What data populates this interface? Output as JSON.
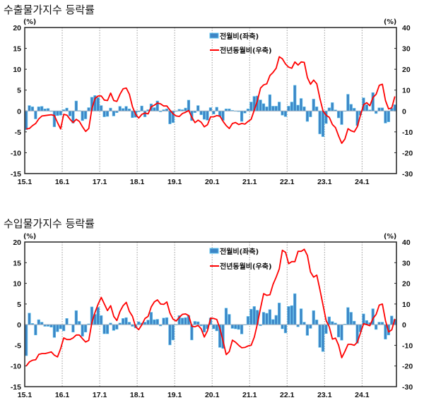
{
  "colors": {
    "bar": "#3d86c6",
    "bar_edge": "#5fc3ee",
    "line": "#ff0000",
    "grid": "#999999"
  },
  "chart_data": [
    {
      "type": "bar+line",
      "title": "수출물가지수 등락률",
      "left_unit": "(%)",
      "right_unit": "(%)",
      "ylim_left": [
        -15,
        20
      ],
      "ylim_right": [
        -30,
        40
      ],
      "left_ticks": [
        "20",
        "15",
        "10",
        "5",
        "0",
        "-5",
        "-10",
        "-15"
      ],
      "right_ticks": [
        "40",
        "30",
        "20",
        "10",
        "0",
        "-10",
        "-20",
        "-30"
      ],
      "x_tick_labels": [
        "15.1",
        "16.1",
        "17.1",
        "18.1",
        "19.1",
        "20.1",
        "21.1",
        "22.1",
        "23.1",
        "24.1"
      ],
      "grid": "vertical dotted at each year",
      "legend_position": "top-center",
      "series": [
        {
          "name": "전월비(좌축)",
          "type": "bar",
          "axis": "left",
          "values": [
            -4.5,
            1.3,
            1.0,
            -1.9,
            1.0,
            1.1,
            0.5,
            0.6,
            -0.1,
            -3.8,
            -1.1,
            -1.0,
            0.3,
            0.7,
            -1.2,
            -2.9,
            2.4,
            0.1,
            -2.3,
            -1.9,
            0.8,
            3.3,
            3.7,
            3.2,
            1.3,
            -1.4,
            -1.3,
            0.7,
            -1.2,
            -0.4,
            1.1,
            0.6,
            1.1,
            0.5,
            -1.6,
            -1.5,
            -0.2,
            1.2,
            -1.4,
            0.3,
            1.7,
            0.8,
            2.4,
            -0.2,
            0.3,
            0.5,
            -3.1,
            -2.8,
            -0.1,
            0.4,
            0.3,
            0.7,
            2.6,
            -2.3,
            -0.4,
            1.3,
            -0.9,
            -2.0,
            -2.2,
            0.8,
            -0.75,
            0.9,
            -1.25,
            -2.25,
            0.5,
            0.5,
            0.15,
            0,
            -0.15,
            -2.5,
            -0.5,
            0.5,
            2.15,
            3.5,
            3.6,
            2.65,
            1.75,
            1.0,
            3.9,
            1.15,
            1.15,
            2.15,
            -1.0,
            -1.35,
            1.15,
            2.15,
            6.15,
            1.4,
            3.0,
            1.0,
            -2.5,
            -1.4,
            2.85,
            1.0,
            -5.5,
            -6.15,
            -3.0,
            0.75,
            2.0,
            0.25,
            -1.65,
            -3.25,
            0,
            4.0,
            1.6,
            0.65,
            -3.5,
            -1.0,
            3.15,
            1.5,
            0.25,
            4.4,
            -0.6,
            0.75,
            0.75,
            -2.9,
            -2.6,
            0.65,
            1.5
          ]
        },
        {
          "name": "전년동월비(우축)",
          "type": "line",
          "axis": "right",
          "values": [
            -8.6,
            -8.4,
            -7,
            -6,
            -3.8,
            -2.4,
            -2.2,
            -2,
            -1.8,
            -2.2,
            -5.6,
            -8.6,
            -1.6,
            -2,
            -4,
            -5.6,
            -4,
            -5,
            -7.6,
            -9.8,
            -8.4,
            1,
            6,
            7.2,
            7.2,
            5.2,
            5,
            8.6,
            5,
            4.6,
            8,
            10.6,
            11,
            8,
            2,
            -1.6,
            -3.4,
            -1.6,
            -1,
            -1.4,
            2,
            2.8,
            3.8,
            3.4,
            2.4,
            2.4,
            0.4,
            -1.4,
            -2.4,
            -2.6,
            -1.2,
            -0.6,
            0.2,
            -3,
            -5.6,
            -4.4,
            -5.4,
            -7.6,
            -6.6,
            -2.8,
            -2.8,
            -2.2,
            -2.5,
            -5,
            -7,
            -8.4,
            -6,
            -5.5,
            -6.5,
            -6,
            -6.3,
            -5,
            -4,
            0.5,
            5,
            11,
            12.5,
            13,
            17,
            18.5,
            20.5,
            26,
            25,
            22.5,
            21,
            20.5,
            23.5,
            22,
            23.5,
            23.3,
            16,
            12.8,
            14.8,
            13,
            6,
            0,
            -2,
            -3,
            -6.5,
            -8,
            -12,
            -15.5,
            -13.5,
            -8.5,
            -9.5,
            -10,
            -7.5,
            -2,
            3,
            4,
            2.5,
            6.5,
            8,
            12.3,
            12.8,
            5,
            1,
            1.5,
            7
          ]
        }
      ]
    },
    {
      "type": "bar+line",
      "title": "수입물가지수 등락률",
      "left_unit": "(%)",
      "right_unit": "(%)",
      "ylim_left": [
        -15,
        20
      ],
      "ylim_right": [
        -30,
        40
      ],
      "left_ticks": [
        "20",
        "15",
        "10",
        "5",
        "0",
        "-5",
        "-10",
        "-15"
      ],
      "right_ticks": [
        "40",
        "30",
        "20",
        "10",
        "0",
        "-10",
        "-20",
        "-30"
      ],
      "x_tick_labels": [
        "15.1",
        "16.1",
        "17.1",
        "18.1",
        "19.1",
        "20.1",
        "21.1",
        "22.1",
        "23.1",
        "24.1"
      ],
      "grid": "vertical dotted at each year",
      "legend_position": "top-center",
      "series": [
        {
          "name": "전월비(좌축)",
          "type": "bar",
          "axis": "left",
          "values": [
            -7.5,
            2.8,
            0.3,
            -2.5,
            1.2,
            0.6,
            -0.4,
            -0.4,
            -0.6,
            -3.1,
            -1.7,
            -1.0,
            -1.5,
            1.5,
            0.1,
            -1.8,
            3.4,
            0.8,
            -2.8,
            -1.8,
            0.2,
            4.3,
            2.5,
            4.2,
            2.2,
            -2.2,
            -2.2,
            0.4,
            -1.4,
            -1.1,
            0.4,
            1.5,
            1.7,
            0.6,
            -0.4,
            -0.8,
            0.7,
            0.4,
            0.6,
            1.1,
            3.0,
            1.2,
            1.3,
            -0.3,
            1.6,
            1.7,
            -4.9,
            -3.7,
            -0.1,
            2.2,
            1.6,
            1.7,
            2.2,
            -3.7,
            0.8,
            0.7,
            -0.3,
            -1.8,
            -1.0,
            1.6,
            -1,
            -1.5,
            -5.5,
            -5.75,
            4,
            2.5,
            -0.9,
            -1,
            -1.15,
            -2.25,
            0,
            2,
            3.75,
            4.4,
            3.5,
            -0.25,
            3,
            2.75,
            3.65,
            1.25,
            2.25,
            5.25,
            -1,
            -2,
            4.4,
            4.6,
            7.5,
            -0.5,
            3.85,
            0.6,
            -2.6,
            -0.9,
            3.4,
            1.15,
            -5.5,
            -6.5,
            -2.15,
            1.9,
            0.75,
            0.4,
            -3,
            -3.75,
            0.15,
            4.15,
            3,
            0.85,
            -4.5,
            -1.75,
            2.6,
            1,
            0.5,
            3.85,
            -1.15,
            0.6,
            0.6,
            -3.5,
            -2.5,
            2.1,
            1.25
          ]
        },
        {
          "name": "전년동월비(우축)",
          "type": "line",
          "axis": "right",
          "values": [
            -20,
            -18,
            -17.2,
            -17,
            -14.4,
            -14,
            -14,
            -13.6,
            -13.2,
            -14.8,
            -15.6,
            -11.6,
            -6.4,
            -7.2,
            -7.2,
            -6.4,
            -5,
            -5,
            -6.8,
            -8.4,
            -7.6,
            1,
            6,
            10,
            13.2,
            10,
            6.8,
            9.2,
            4,
            2,
            6.4,
            9.2,
            10.8,
            6.4,
            4,
            -1,
            -2.4,
            0,
            3,
            4,
            8.6,
            11,
            12,
            10,
            9.8,
            11,
            5.6,
            2.6,
            1.8,
            3.6,
            5,
            5.2,
            4.4,
            -0.8,
            -1,
            -0.4,
            -2,
            -6,
            -3,
            3.2,
            3,
            2.5,
            -2,
            -8,
            -14.5,
            -13,
            -7.5,
            -8.5,
            -10,
            -11.2,
            -11,
            -10.3,
            -10,
            -6,
            0.5,
            8,
            15,
            14.2,
            14.5,
            19.5,
            23,
            27,
            36,
            35,
            29.5,
            30.5,
            30.5,
            35.5,
            35.5,
            36.5,
            33.5,
            25.5,
            23,
            24,
            17,
            9.5,
            2,
            -1,
            -7,
            -6.5,
            -10,
            -16,
            -13,
            -9.5,
            -9.5,
            -10,
            -8.5,
            -4,
            0.5,
            0,
            -0.5,
            3,
            5,
            9.5,
            10,
            2,
            -3.5,
            -2.5,
            2.8
          ]
        }
      ]
    }
  ]
}
